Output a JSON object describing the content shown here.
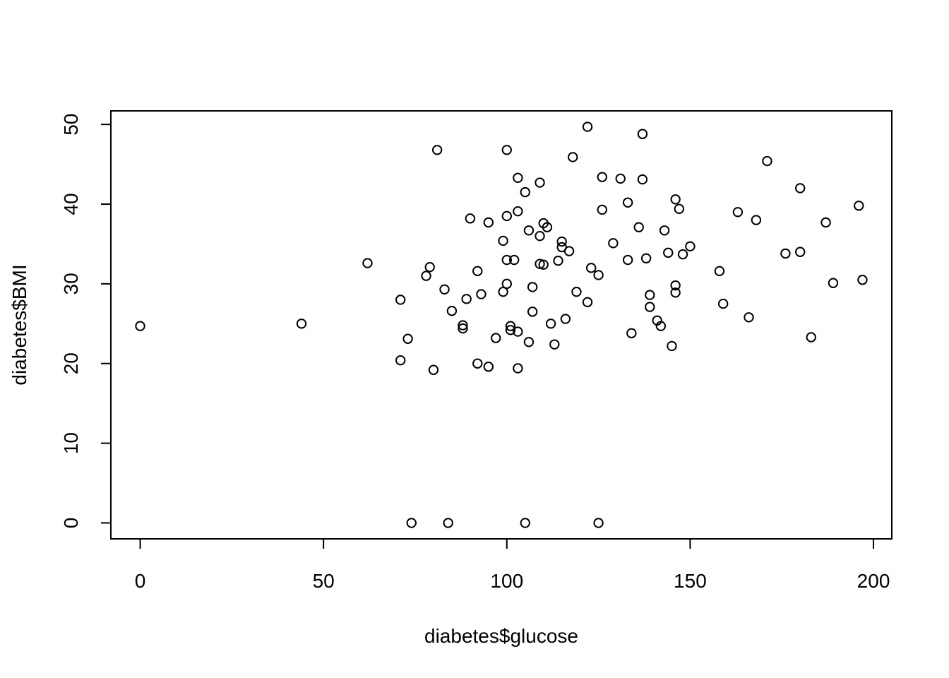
{
  "chart_data": {
    "type": "scatter",
    "title": "",
    "xlabel": "diabetes$glucose",
    "ylabel": "diabetes$BMI",
    "xlim": [
      -8,
      205
    ],
    "ylim": [
      -2,
      51.7
    ],
    "x_ticks": [
      "0",
      "50",
      "100",
      "150",
      "200"
    ],
    "y_ticks": [
      "0",
      "10",
      "20",
      "30",
      "40",
      "50"
    ],
    "grid": false,
    "marker": "open-circle",
    "points": [
      [
        0,
        24.7
      ],
      [
        44,
        25.0
      ],
      [
        62,
        32.6
      ],
      [
        71,
        28.0
      ],
      [
        71,
        20.4
      ],
      [
        73,
        23.1
      ],
      [
        74,
        0
      ],
      [
        78,
        31.0
      ],
      [
        79,
        32.1
      ],
      [
        80,
        19.2
      ],
      [
        81,
        46.8
      ],
      [
        83,
        29.3
      ],
      [
        84,
        0
      ],
      [
        85,
        26.6
      ],
      [
        88,
        24.8
      ],
      [
        88,
        24.4
      ],
      [
        89,
        28.1
      ],
      [
        90,
        38.2
      ],
      [
        92,
        31.6
      ],
      [
        92,
        20.0
      ],
      [
        93,
        28.7
      ],
      [
        95,
        37.7
      ],
      [
        95,
        19.6
      ],
      [
        97,
        23.2
      ],
      [
        99,
        35.4
      ],
      [
        99,
        29.0
      ],
      [
        100,
        46.8
      ],
      [
        100,
        38.5
      ],
      [
        100,
        33.0
      ],
      [
        100,
        30.0
      ],
      [
        101,
        24.7
      ],
      [
        101,
        24.2
      ],
      [
        102,
        33.0
      ],
      [
        103,
        43.3
      ],
      [
        103,
        39.1
      ],
      [
        103,
        24.0
      ],
      [
        103,
        19.4
      ],
      [
        105,
        41.5
      ],
      [
        105,
        0
      ],
      [
        106,
        36.7
      ],
      [
        106,
        22.7
      ],
      [
        107,
        29.6
      ],
      [
        107,
        26.5
      ],
      [
        109,
        42.7
      ],
      [
        109,
        36.0
      ],
      [
        109,
        32.5
      ],
      [
        110,
        37.6
      ],
      [
        110,
        32.4
      ],
      [
        111,
        37.1
      ],
      [
        112,
        25.0
      ],
      [
        113,
        22.4
      ],
      [
        114,
        32.9
      ],
      [
        115,
        35.3
      ],
      [
        115,
        34.6
      ],
      [
        116,
        25.6
      ],
      [
        117,
        34.1
      ],
      [
        118,
        45.9
      ],
      [
        119,
        29.0
      ],
      [
        122,
        49.7
      ],
      [
        122,
        27.7
      ],
      [
        123,
        32.0
      ],
      [
        125,
        31.1
      ],
      [
        125,
        0
      ],
      [
        126,
        43.4
      ],
      [
        126,
        39.3
      ],
      [
        129,
        35.1
      ],
      [
        131,
        43.2
      ],
      [
        133,
        40.2
      ],
      [
        133,
        33.0
      ],
      [
        134,
        23.8
      ],
      [
        136,
        37.1
      ],
      [
        137,
        48.8
      ],
      [
        137,
        43.1
      ],
      [
        138,
        33.2
      ],
      [
        139,
        28.6
      ],
      [
        139,
        27.1
      ],
      [
        141,
        25.4
      ],
      [
        142,
        24.7
      ],
      [
        143,
        36.7
      ],
      [
        144,
        33.9
      ],
      [
        145,
        22.2
      ],
      [
        146,
        40.6
      ],
      [
        146,
        29.8
      ],
      [
        146,
        28.9
      ],
      [
        147,
        39.4
      ],
      [
        148,
        33.7
      ],
      [
        150,
        34.7
      ],
      [
        158,
        31.6
      ],
      [
        159,
        27.5
      ],
      [
        163,
        39.0
      ],
      [
        166,
        25.8
      ],
      [
        168,
        38.0
      ],
      [
        171,
        45.4
      ],
      [
        176,
        33.8
      ],
      [
        180,
        42.0
      ],
      [
        180,
        34.0
      ],
      [
        183,
        23.3
      ],
      [
        187,
        37.7
      ],
      [
        189,
        30.1
      ],
      [
        196,
        39.8
      ],
      [
        197,
        30.5
      ]
    ]
  }
}
